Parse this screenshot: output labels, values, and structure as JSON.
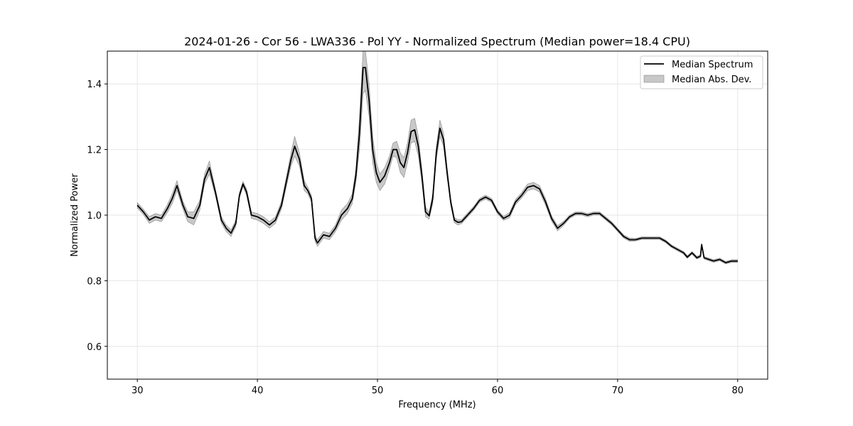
{
  "chart_data": {
    "type": "line",
    "title": "2024-01-26 - Cor 56 - LWA336 - Pol YY - Normalized Spectrum (Median power=18.4 CPU)",
    "xlabel": "Frequency (MHz)",
    "ylabel": "Normalized Power",
    "xlim": [
      27.5,
      82.5
    ],
    "ylim": [
      0.5,
      1.5
    ],
    "xticks": [
      30,
      40,
      50,
      60,
      70,
      80
    ],
    "yticks": [
      0.6,
      0.8,
      1.0,
      1.2,
      1.4
    ],
    "xtick_labels": [
      "30",
      "40",
      "50",
      "60",
      "70",
      "80"
    ],
    "ytick_labels": [
      "0.6",
      "0.8",
      "1.0",
      "1.2",
      "1.4"
    ],
    "grid": true,
    "legend_position": "top-right",
    "legend": [
      "Median Spectrum",
      "Median Abs. Dev."
    ],
    "colors": {
      "line": "#000000",
      "band": "#b0b0b0",
      "grid": "#e6e6e6"
    },
    "series": [
      {
        "name": "Median Spectrum",
        "x": [
          30.0,
          30.5,
          31.0,
          31.5,
          32.0,
          32.5,
          32.9,
          33.3,
          33.8,
          34.2,
          34.7,
          35.2,
          35.6,
          36.0,
          36.5,
          37.0,
          37.4,
          37.8,
          38.2,
          38.5,
          38.8,
          39.1,
          39.5,
          40.0,
          40.5,
          41.0,
          41.5,
          42.0,
          42.4,
          42.8,
          43.1,
          43.5,
          43.9,
          44.2,
          44.5,
          44.8,
          45.0,
          45.5,
          46.0,
          46.5,
          47.0,
          47.5,
          47.9,
          48.2,
          48.5,
          48.8,
          49.0,
          49.3,
          49.6,
          49.9,
          50.2,
          50.6,
          51.0,
          51.3,
          51.6,
          51.9,
          52.2,
          52.5,
          52.8,
          53.1,
          53.4,
          53.7,
          54.0,
          54.3,
          54.6,
          54.9,
          55.2,
          55.5,
          55.8,
          56.1,
          56.4,
          56.7,
          57.0,
          57.5,
          58.0,
          58.5,
          59.0,
          59.5,
          60.0,
          60.5,
          61.0,
          61.5,
          62.0,
          62.5,
          63.0,
          63.5,
          64.0,
          64.5,
          65.0,
          65.5,
          66.0,
          66.5,
          67.0,
          67.5,
          68.0,
          68.5,
          69.0,
          69.5,
          70.0,
          70.5,
          71.0,
          71.5,
          72.0,
          72.5,
          73.0,
          73.5,
          74.0,
          74.5,
          75.0,
          75.5,
          75.8,
          76.2,
          76.6,
          76.9,
          77.0,
          77.2,
          77.6,
          78.0,
          78.5,
          79.0,
          79.5,
          80.0
        ],
        "values": [
          1.03,
          1.01,
          0.985,
          0.995,
          0.99,
          1.02,
          1.05,
          1.09,
          1.03,
          0.995,
          0.99,
          1.03,
          1.11,
          1.145,
          1.07,
          0.985,
          0.96,
          0.945,
          0.975,
          1.06,
          1.095,
          1.07,
          1.0,
          0.995,
          0.985,
          0.97,
          0.985,
          1.03,
          1.1,
          1.17,
          1.21,
          1.17,
          1.09,
          1.075,
          1.05,
          0.93,
          0.915,
          0.94,
          0.935,
          0.96,
          1.0,
          1.02,
          1.05,
          1.12,
          1.25,
          1.45,
          1.45,
          1.35,
          1.2,
          1.13,
          1.1,
          1.12,
          1.16,
          1.2,
          1.2,
          1.16,
          1.145,
          1.19,
          1.255,
          1.26,
          1.21,
          1.12,
          1.01,
          0.998,
          1.05,
          1.19,
          1.265,
          1.23,
          1.13,
          1.04,
          0.985,
          0.978,
          0.98,
          1.0,
          1.02,
          1.045,
          1.055,
          1.045,
          1.01,
          0.99,
          1.0,
          1.04,
          1.06,
          1.085,
          1.09,
          1.08,
          1.04,
          0.99,
          0.96,
          0.975,
          0.995,
          1.005,
          1.005,
          1.0,
          1.005,
          1.005,
          0.99,
          0.975,
          0.955,
          0.935,
          0.925,
          0.925,
          0.93,
          0.93,
          0.93,
          0.93,
          0.92,
          0.905,
          0.895,
          0.885,
          0.872,
          0.885,
          0.87,
          0.875,
          0.91,
          0.87,
          0.865,
          0.86,
          0.865,
          0.855,
          0.86,
          0.86
        ]
      },
      {
        "name": "Median Abs. Dev.",
        "x": [
          30.0,
          30.5,
          31.0,
          31.5,
          32.0,
          32.5,
          32.9,
          33.3,
          33.8,
          34.2,
          34.7,
          35.2,
          35.6,
          36.0,
          36.5,
          37.0,
          37.4,
          37.8,
          38.2,
          38.5,
          38.8,
          39.1,
          39.5,
          40.0,
          40.5,
          41.0,
          41.5,
          42.0,
          42.4,
          42.8,
          43.1,
          43.5,
          43.9,
          44.2,
          44.5,
          44.8,
          45.0,
          45.5,
          46.0,
          46.5,
          47.0,
          47.5,
          47.9,
          48.2,
          48.5,
          48.8,
          49.0,
          49.3,
          49.6,
          49.9,
          50.2,
          50.6,
          51.0,
          51.3,
          51.6,
          51.9,
          52.2,
          52.5,
          52.8,
          53.1,
          53.4,
          53.7,
          54.0,
          54.3,
          54.6,
          54.9,
          55.2,
          55.5,
          55.8,
          56.1,
          56.4,
          56.7,
          57.0,
          57.5,
          58.0,
          58.5,
          59.0,
          59.5,
          60.0,
          60.5,
          61.0,
          61.5,
          62.0,
          62.5,
          63.0,
          63.5,
          64.0,
          64.5,
          65.0,
          65.5,
          66.0,
          66.5,
          67.0,
          67.5,
          68.0,
          68.5,
          69.0,
          69.5,
          70.0,
          70.5,
          71.0,
          71.5,
          72.0,
          72.5,
          73.0,
          73.5,
          74.0,
          74.5,
          75.0,
          75.5,
          75.8,
          76.2,
          76.6,
          76.9,
          77.0,
          77.2,
          77.6,
          78.0,
          78.5,
          79.0,
          79.5,
          80.0
        ],
        "values": [
          0.008,
          0.008,
          0.01,
          0.01,
          0.01,
          0.012,
          0.015,
          0.015,
          0.012,
          0.015,
          0.02,
          0.015,
          0.015,
          0.02,
          0.01,
          0.01,
          0.01,
          0.01,
          0.01,
          0.008,
          0.008,
          0.01,
          0.01,
          0.01,
          0.01,
          0.01,
          0.01,
          0.012,
          0.015,
          0.02,
          0.03,
          0.02,
          0.015,
          0.01,
          0.01,
          0.01,
          0.01,
          0.01,
          0.01,
          0.01,
          0.015,
          0.015,
          0.015,
          0.02,
          0.05,
          0.08,
          0.07,
          0.05,
          0.04,
          0.03,
          0.025,
          0.025,
          0.02,
          0.02,
          0.025,
          0.03,
          0.03,
          0.03,
          0.035,
          0.035,
          0.03,
          0.02,
          0.015,
          0.01,
          0.015,
          0.02,
          0.025,
          0.02,
          0.015,
          0.01,
          0.008,
          0.008,
          0.006,
          0.006,
          0.006,
          0.006,
          0.006,
          0.006,
          0.006,
          0.006,
          0.008,
          0.008,
          0.008,
          0.01,
          0.01,
          0.01,
          0.01,
          0.008,
          0.008,
          0.006,
          0.005,
          0.005,
          0.005,
          0.005,
          0.005,
          0.005,
          0.005,
          0.005,
          0.005,
          0.005,
          0.005,
          0.004,
          0.004,
          0.004,
          0.004,
          0.004,
          0.004,
          0.004,
          0.004,
          0.004,
          0.004,
          0.004,
          0.004,
          0.004,
          0.004,
          0.004,
          0.004,
          0.004,
          0.004,
          0.004,
          0.004,
          0.004
        ]
      }
    ]
  }
}
